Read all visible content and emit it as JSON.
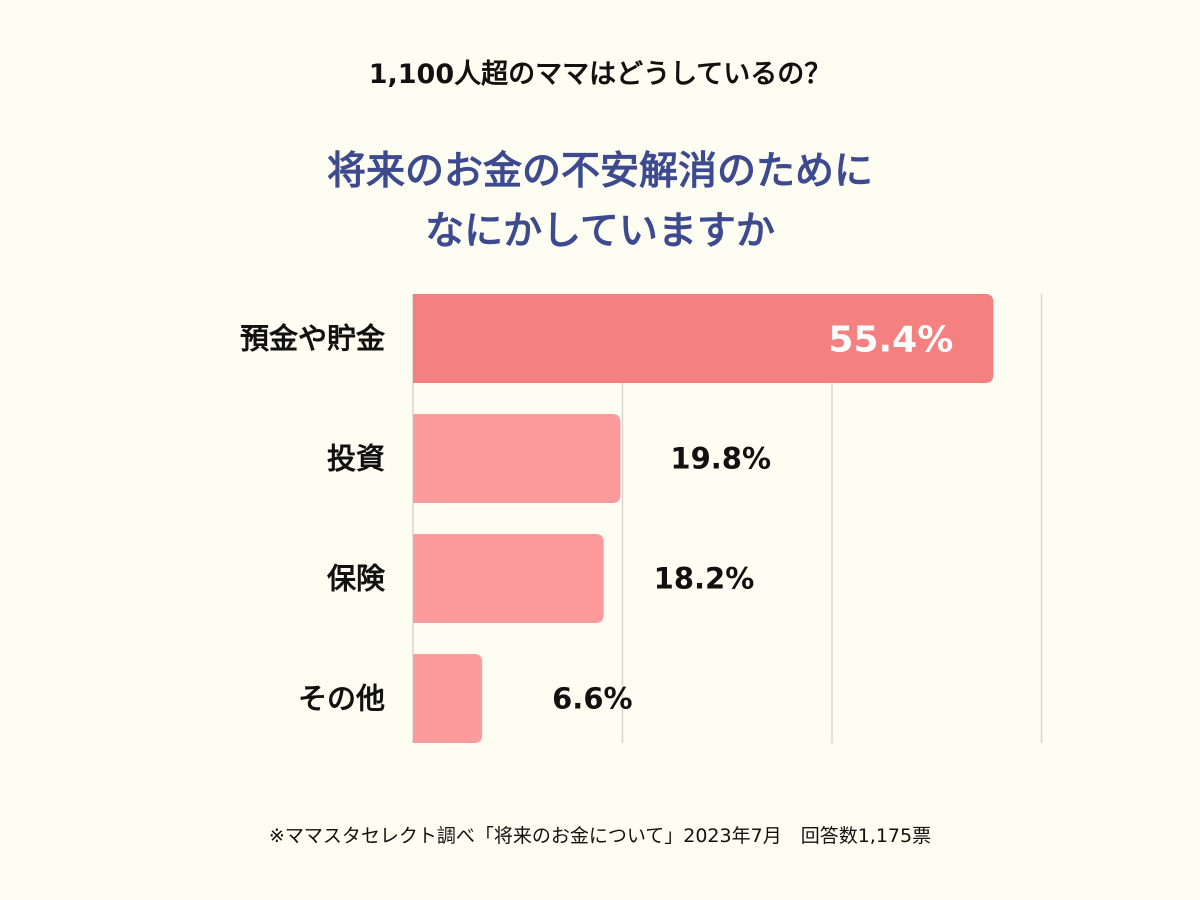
{
  "header": {
    "subtitle": "1,100人超のママはどうしているの？",
    "title_line1": "将来のお金の不安解消のために",
    "title_line2": "なにかしていますか"
  },
  "footnote": "※ママスタセレクト調べ「将来のお金について」2023年7月　回答数1,175票",
  "colors": {
    "background": "#fdfdf1",
    "title": "#3d4a8f",
    "bar_primary": "#f48080",
    "bar_secondary": "#fd9a9c",
    "gridline": "#d6d6d6",
    "label_on_bar": "#ffffff"
  },
  "chart_data": {
    "type": "bar",
    "orientation": "horizontal",
    "categories": [
      "預金や貯金",
      "投資",
      "保険",
      "その他"
    ],
    "values": [
      55.4,
      19.8,
      18.2,
      6.6
    ],
    "data_labels": [
      "55.4%",
      "19.8%",
      "18.2%",
      "6.6%"
    ],
    "unit": "%",
    "xlim": [
      0,
      60
    ],
    "grid": true,
    "highlight_index": 0
  }
}
